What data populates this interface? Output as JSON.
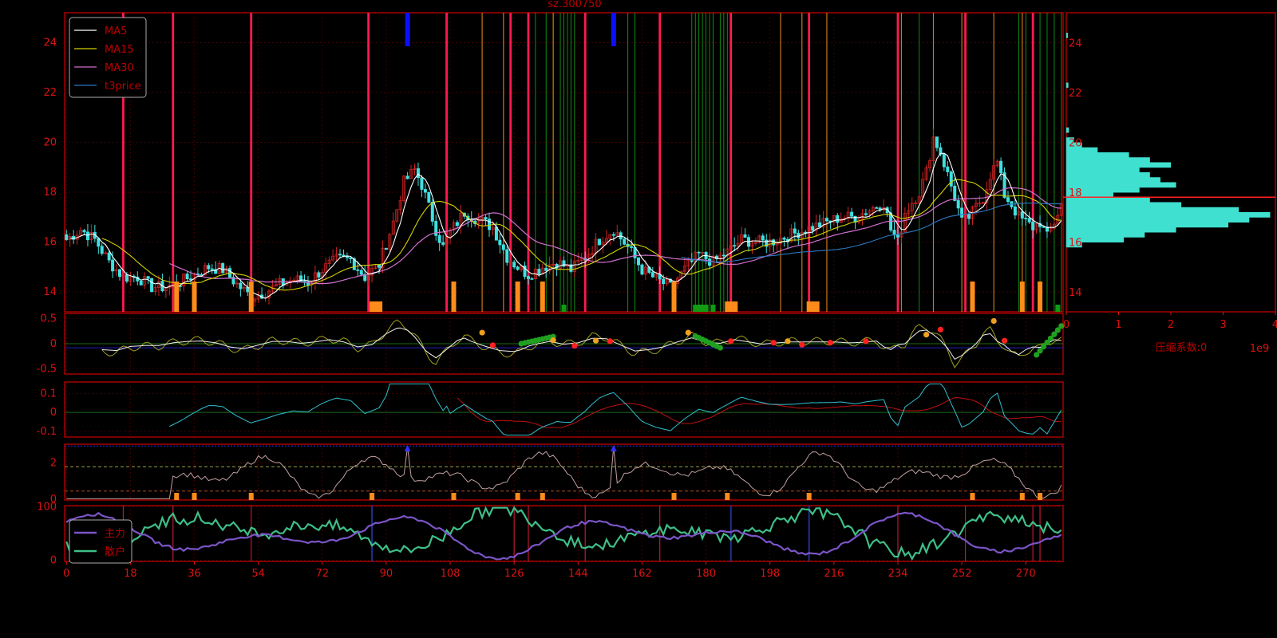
{
  "chart_data": {
    "type": "candlestick",
    "title": "sz.300750",
    "bar_count": 281,
    "x_ticks": [
      0,
      18,
      36,
      54,
      72,
      90,
      108,
      126,
      144,
      162,
      180,
      198,
      216,
      234,
      252,
      270
    ],
    "colors": {
      "frame": "#b00000",
      "tick": "#dd1111",
      "up": "#cc2222",
      "down": "#40e0e0",
      "ma5": "#ffffff",
      "ma15": "#d4d400",
      "ma30": "#d070d0",
      "t3price": "#2a78c0",
      "signal_red": "#ff1a50",
      "signal_green": "#139a13",
      "signal_orange": "#ff8c1a",
      "blue_mark": "#0a10ff",
      "hist": "#40e0d0",
      "main": "#7b55c8",
      "retail": "#3fbf88"
    },
    "panels": [
      {
        "id": "price",
        "ylim": [
          13.2,
          25.2
        ],
        "y_ticks": [
          14,
          16,
          18,
          20,
          22,
          24
        ],
        "legend": [
          "MA5",
          "MA15",
          "MA30",
          "t3price"
        ],
        "legend_position": "top-left",
        "close_anchors": [
          [
            0,
            16.1
          ],
          [
            4,
            16.5
          ],
          [
            8,
            16.1
          ],
          [
            12,
            15.2
          ],
          [
            16,
            14.6
          ],
          [
            20,
            14.6
          ],
          [
            24,
            14.2
          ],
          [
            28,
            14.2
          ],
          [
            32,
            14.4
          ],
          [
            36,
            14.7
          ],
          [
            40,
            15.0
          ],
          [
            44,
            14.9
          ],
          [
            48,
            14.3
          ],
          [
            52,
            13.8
          ],
          [
            56,
            14.0
          ],
          [
            60,
            14.3
          ],
          [
            64,
            14.5
          ],
          [
            68,
            14.4
          ],
          [
            72,
            14.9
          ],
          [
            76,
            15.3
          ],
          [
            80,
            15.3
          ],
          [
            84,
            14.6
          ],
          [
            88,
            15.1
          ],
          [
            92,
            16.8
          ],
          [
            95,
            18.4
          ],
          [
            98,
            18.9
          ],
          [
            100,
            18.3
          ],
          [
            104,
            16.5
          ],
          [
            106,
            15.8
          ],
          [
            108,
            16.4
          ],
          [
            112,
            17.2
          ],
          [
            116,
            16.9
          ],
          [
            120,
            16.6
          ],
          [
            124,
            15.4
          ],
          [
            127,
            15.0
          ],
          [
            130,
            14.7
          ],
          [
            134,
            15.0
          ],
          [
            138,
            15.2
          ],
          [
            142,
            14.9
          ],
          [
            146,
            15.4
          ],
          [
            150,
            16.1
          ],
          [
            154,
            16.5
          ],
          [
            158,
            15.8
          ],
          [
            162,
            14.9
          ],
          [
            166,
            14.5
          ],
          [
            170,
            14.2
          ],
          [
            174,
            14.9
          ],
          [
            178,
            15.5
          ],
          [
            182,
            15.2
          ],
          [
            186,
            15.6
          ],
          [
            190,
            16.1
          ],
          [
            194,
            16.0
          ],
          [
            198,
            16.0
          ],
          [
            202,
            16.2
          ],
          [
            206,
            16.4
          ],
          [
            210,
            16.6
          ],
          [
            214,
            16.8
          ],
          [
            218,
            17.0
          ],
          [
            222,
            17.0
          ],
          [
            226,
            17.3
          ],
          [
            230,
            17.6
          ],
          [
            232,
            16.5
          ],
          [
            234,
            16.0
          ],
          [
            236,
            17.2
          ],
          [
            238,
            17.6
          ],
          [
            240,
            18.0
          ],
          [
            242,
            18.8
          ],
          [
            244,
            20.2
          ],
          [
            246,
            19.6
          ],
          [
            248,
            18.7
          ],
          [
            250,
            17.8
          ],
          [
            252,
            16.8
          ],
          [
            254,
            17.0
          ],
          [
            258,
            17.8
          ],
          [
            260,
            18.7
          ],
          [
            262,
            19.2
          ],
          [
            264,
            17.9
          ],
          [
            266,
            17.5
          ],
          [
            268,
            17.0
          ],
          [
            272,
            16.6
          ],
          [
            274,
            16.8
          ],
          [
            276,
            16.2
          ],
          [
            278,
            16.8
          ],
          [
            280,
            17.5
          ]
        ],
        "ma_seeds": {
          "ma5": 1,
          "ma15": 10,
          "ma30": 29
        },
        "t3price_start": 173,
        "red_lines": [
          16,
          30,
          52,
          85,
          107,
          125,
          130,
          146,
          167,
          187,
          209,
          234,
          253,
          272
        ],
        "orange_lines": [
          117,
          123,
          137,
          146,
          201,
          207,
          214,
          235,
          244,
          252,
          261,
          269
        ],
        "green_lines": [
          130,
          132,
          135,
          137,
          139,
          140,
          141,
          142,
          143,
          158,
          160,
          176,
          177,
          178,
          179,
          180,
          181,
          182,
          184,
          185,
          186,
          240,
          268,
          270,
          274,
          276,
          278,
          280
        ],
        "blue_marks": [
          96,
          154
        ],
        "orange_blocks": [
          [
            31,
            1
          ],
          [
            36,
            1
          ],
          [
            52,
            1
          ],
          [
            86,
            2
          ],
          [
            109,
            1
          ],
          [
            127,
            1
          ],
          [
            134,
            1
          ],
          [
            171,
            1
          ],
          [
            186,
            2
          ],
          [
            209,
            2
          ],
          [
            255,
            1
          ],
          [
            269,
            1
          ],
          [
            274,
            1
          ]
        ],
        "green_blocks": [
          [
            140,
            1
          ],
          [
            177,
            3
          ],
          [
            180,
            1
          ],
          [
            182,
            1
          ],
          [
            279,
            1
          ]
        ]
      },
      {
        "id": "osc1",
        "ylim": [
          -0.6,
          0.6
        ],
        "y_ticks": [
          0.5,
          0.0,
          -0.5
        ],
        "dots_red": [
          [
            120,
            -0.03
          ],
          [
            143,
            -0.04
          ],
          [
            153,
            0.05
          ],
          [
            187,
            0.05
          ],
          [
            199,
            0.02
          ],
          [
            207,
            -0.02
          ],
          [
            215,
            0.02
          ],
          [
            225,
            0.05
          ],
          [
            246,
            0.28
          ],
          [
            264,
            0.06
          ]
        ],
        "dots_orange": [
          [
            117,
            0.22
          ],
          [
            137,
            0.07
          ],
          [
            149,
            0.06
          ],
          [
            175,
            0.22
          ],
          [
            203,
            0.05
          ],
          [
            242,
            0.18
          ],
          [
            261,
            0.45
          ]
        ],
        "green_runs": [
          [
            128,
            137,
            0.0,
            0.14
          ],
          [
            177,
            184,
            0.15,
            -0.08
          ],
          [
            273,
            280,
            -0.22,
            0.35
          ]
        ]
      },
      {
        "id": "osc2",
        "ylim": [
          -0.13,
          0.16
        ],
        "y_ticks": [
          0.1,
          0.0,
          -0.1
        ],
        "cyan_start": 29,
        "red_start": 110
      },
      {
        "id": "osc3",
        "ylim": [
          -0.05,
          3.05
        ],
        "y_ticks": [
          2,
          0
        ],
        "h_lines": [
          1.8,
          0.45
        ],
        "blue_peaks": [
          96,
          154
        ]
      },
      {
        "id": "flows",
        "ylim": [
          -2,
          102
        ],
        "y_ticks": [
          100,
          0
        ],
        "legend": [
          "主力",
          "散户"
        ],
        "legend_position": "top-left",
        "vertical_red": [
          16,
          30,
          52,
          126,
          130,
          146,
          167,
          234,
          253,
          272,
          274
        ],
        "vertical_blue": [
          86,
          187,
          209
        ]
      }
    ],
    "histogram": {
      "x_ticks": [
        "0",
        "1",
        "2",
        "3",
        "4"
      ],
      "xlim": [
        0,
        4
      ],
      "xlabel": "压缩系数:0",
      "scale_label": "1e9",
      "y_ticks": [
        14,
        16,
        18,
        20,
        22,
        24
      ],
      "ylim": [
        13.2,
        25.2
      ],
      "bins": [
        [
          15.8,
          0.3
        ],
        [
          16.0,
          1.1
        ],
        [
          16.2,
          1.5
        ],
        [
          16.4,
          2.1
        ],
        [
          16.6,
          3.1
        ],
        [
          16.8,
          3.5
        ],
        [
          17.0,
          3.9
        ],
        [
          17.2,
          3.3
        ],
        [
          17.4,
          2.2
        ],
        [
          17.6,
          1.6
        ],
        [
          17.8,
          0.9
        ],
        [
          18.0,
          1.4
        ],
        [
          18.2,
          2.1
        ],
        [
          18.4,
          1.8
        ],
        [
          18.6,
          1.6
        ],
        [
          18.8,
          1.4
        ],
        [
          19.0,
          2.0
        ],
        [
          19.2,
          1.6
        ],
        [
          19.4,
          1.2
        ],
        [
          19.6,
          0.6
        ],
        [
          19.8,
          0.3
        ],
        [
          20.0,
          0.15
        ],
        [
          20.4,
          0.05
        ],
        [
          22.2,
          0.04
        ],
        [
          24.2,
          0.03
        ]
      ],
      "current_price": 17.8
    }
  }
}
